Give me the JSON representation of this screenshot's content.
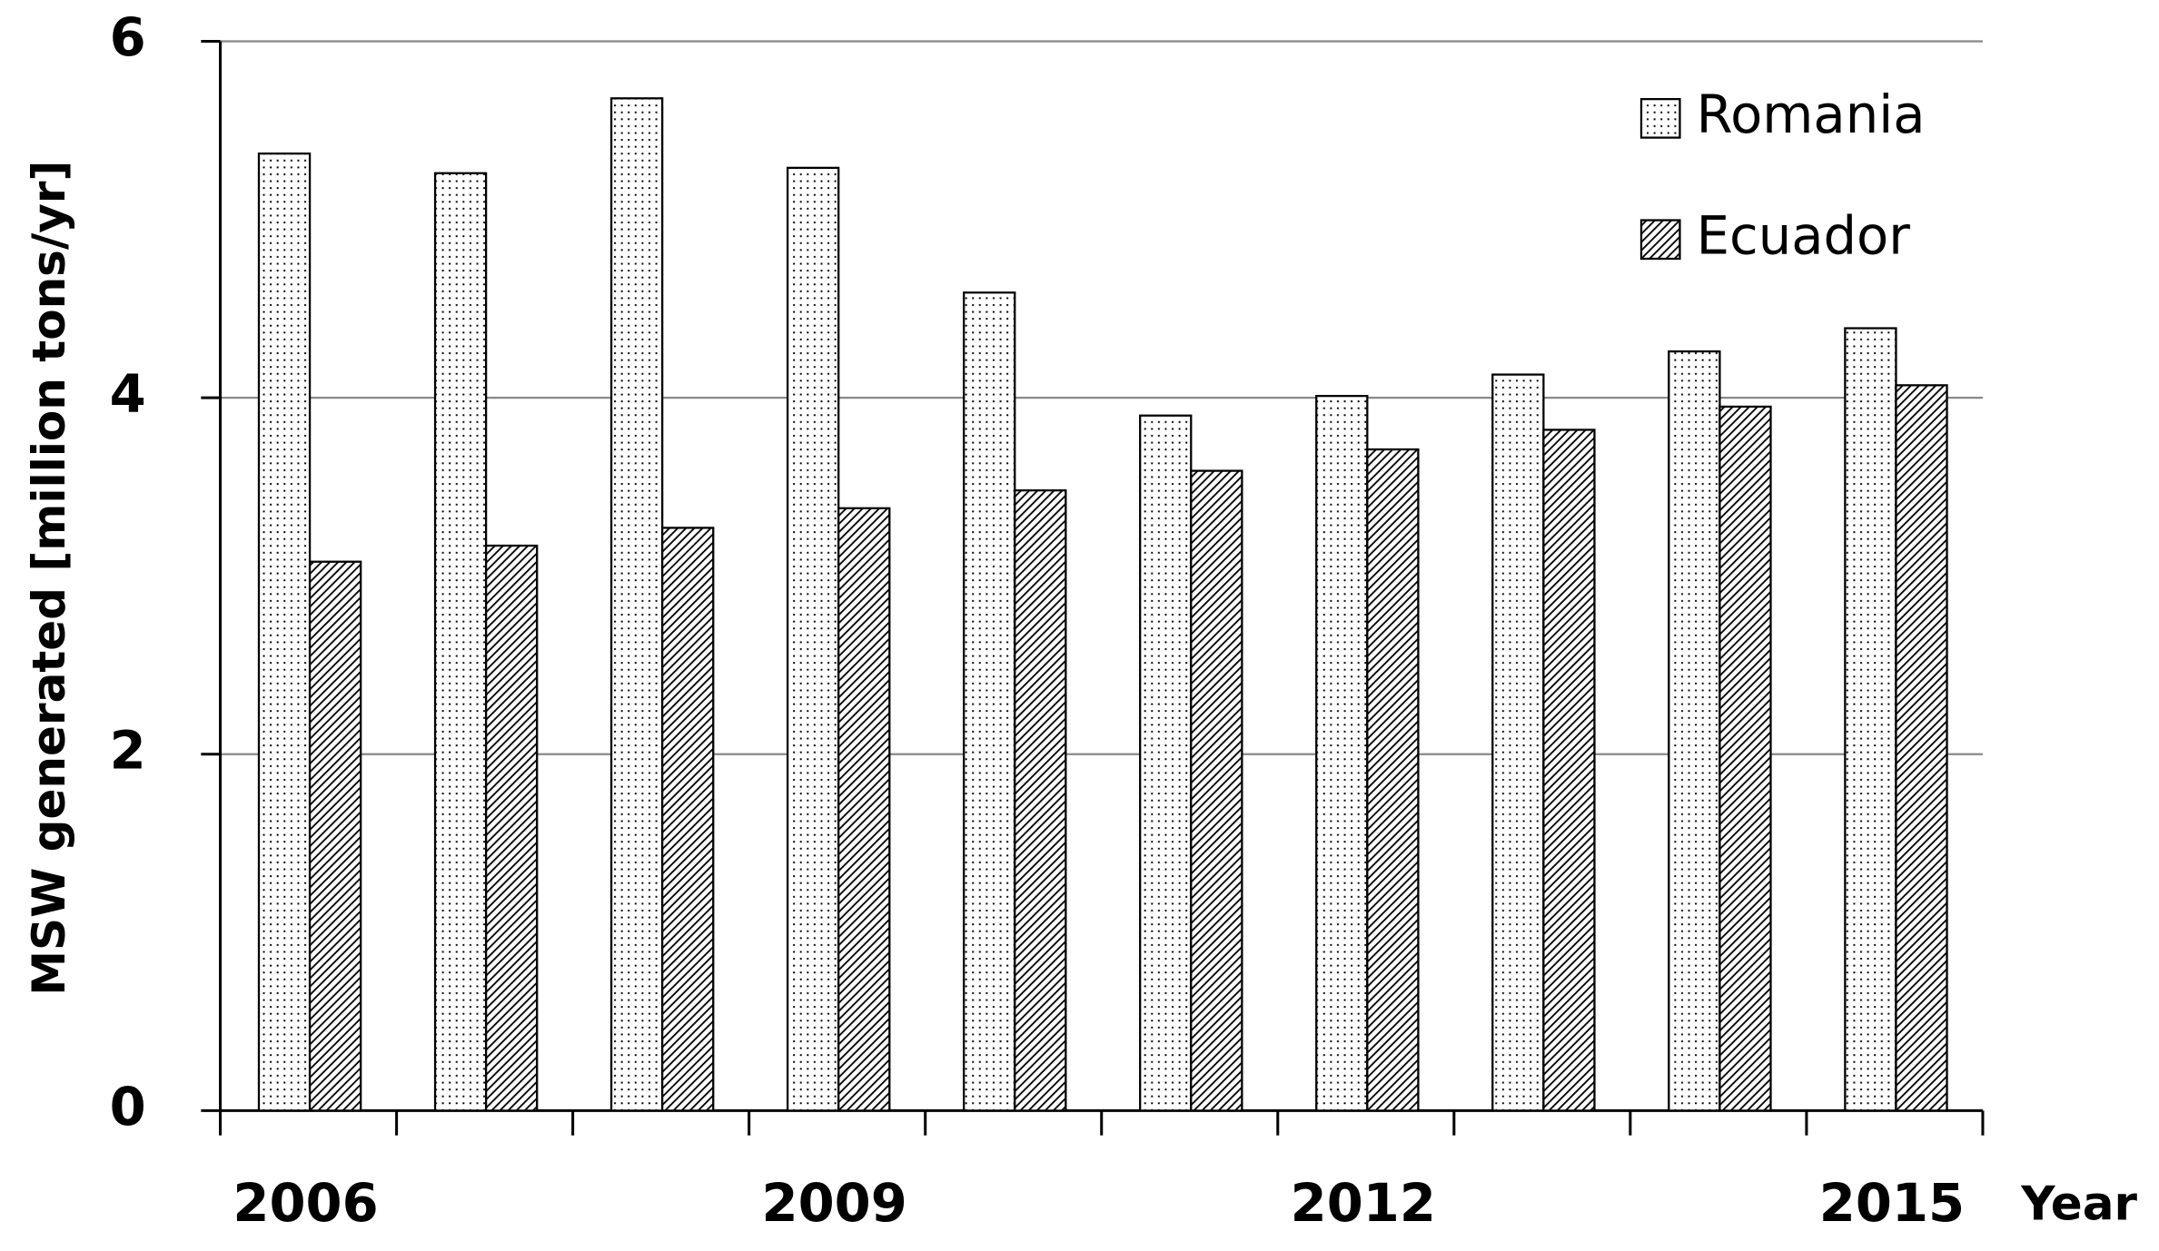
{
  "chart_data": {
    "type": "bar",
    "y_label": "MSW generated [million tons/yr]",
    "x_label": "Year",
    "categories": [
      "2006",
      null,
      null,
      "2009",
      null,
      null,
      "2012",
      null,
      null,
      "2015"
    ],
    "series": [
      {
        "name": "Romania",
        "color": "#000000",
        "pattern": "dots",
        "values": [
          5.37,
          5.26,
          5.68,
          5.29,
          4.59,
          3.9,
          4.01,
          4.13,
          4.26,
          4.39
        ]
      },
      {
        "name": "Ecuador",
        "color": "#000000",
        "pattern": "hatch",
        "values": [
          3.08,
          3.17,
          3.27,
          3.38,
          3.48,
          3.59,
          3.71,
          3.82,
          3.95,
          4.07
        ]
      }
    ],
    "ylim": [
      0,
      6
    ],
    "yticks": [
      0,
      2,
      4,
      6
    ],
    "grid": true,
    "legend": "top-right"
  }
}
